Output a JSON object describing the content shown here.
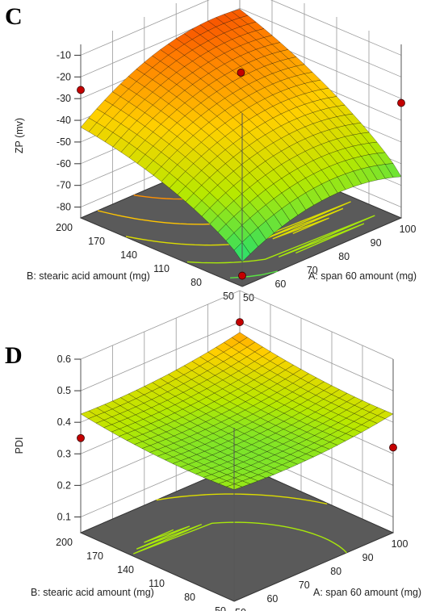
{
  "chart_data": [
    {
      "type": "surface",
      "panel_label": "C",
      "zlabel": "ZP (mv)",
      "xlabel": "A: span 60 amount (mg)",
      "ylabel": "B: stearic acid amount (mg)",
      "x_ticks": [
        "50",
        "60",
        "70",
        "80",
        "90",
        "100"
      ],
      "y_ticks": [
        "50",
        "80",
        "110",
        "140",
        "170",
        "200"
      ],
      "z_ticks": [
        "-10",
        "-20",
        "-30",
        "-40",
        "-50",
        "-60",
        "-70",
        "-80"
      ],
      "xlim": [
        50,
        100
      ],
      "ylim": [
        50,
        200
      ],
      "zlim": [
        -85,
        -5
      ],
      "design_points": [
        {
          "x": 50,
          "y": 200,
          "z": -26
        },
        {
          "x": 100,
          "y": 200,
          "z": -12
        },
        {
          "x": 75,
          "y": 125,
          "z": -18
        },
        {
          "x": 50,
          "y": 50,
          "z": -80
        },
        {
          "x": 100,
          "y": 50,
          "z": -32
        }
      ],
      "colormap": [
        "#00e5ff",
        "#39e05a",
        "#b8e800",
        "#ffd000",
        "#ff7a00",
        "#e60000"
      ]
    },
    {
      "type": "surface",
      "panel_label": "D",
      "zlabel": "PDI",
      "xlabel": "A: span 60 amount (mg)",
      "ylabel": "B: stearic acid amount (mg)",
      "x_ticks": [
        "50",
        "60",
        "70",
        "80",
        "90",
        "100"
      ],
      "y_ticks": [
        "50",
        "80",
        "110",
        "140",
        "170",
        "200"
      ],
      "z_ticks": [
        "0.6",
        "0.5",
        "0.4",
        "0.3",
        "0.2",
        "0.1"
      ],
      "xlim": [
        50,
        100
      ],
      "ylim": [
        50,
        200
      ],
      "zlim": [
        0.05,
        0.6
      ],
      "design_points": [
        {
          "x": 50,
          "y": 200,
          "z": 0.35
        },
        {
          "x": 100,
          "y": 200,
          "z": 0.5
        },
        {
          "x": 100,
          "y": 50,
          "z": 0.32
        }
      ],
      "colormap": [
        "#20d8ff",
        "#39e05a",
        "#b8e800",
        "#ffd000",
        "#ff7a00",
        "#e60000"
      ]
    }
  ]
}
